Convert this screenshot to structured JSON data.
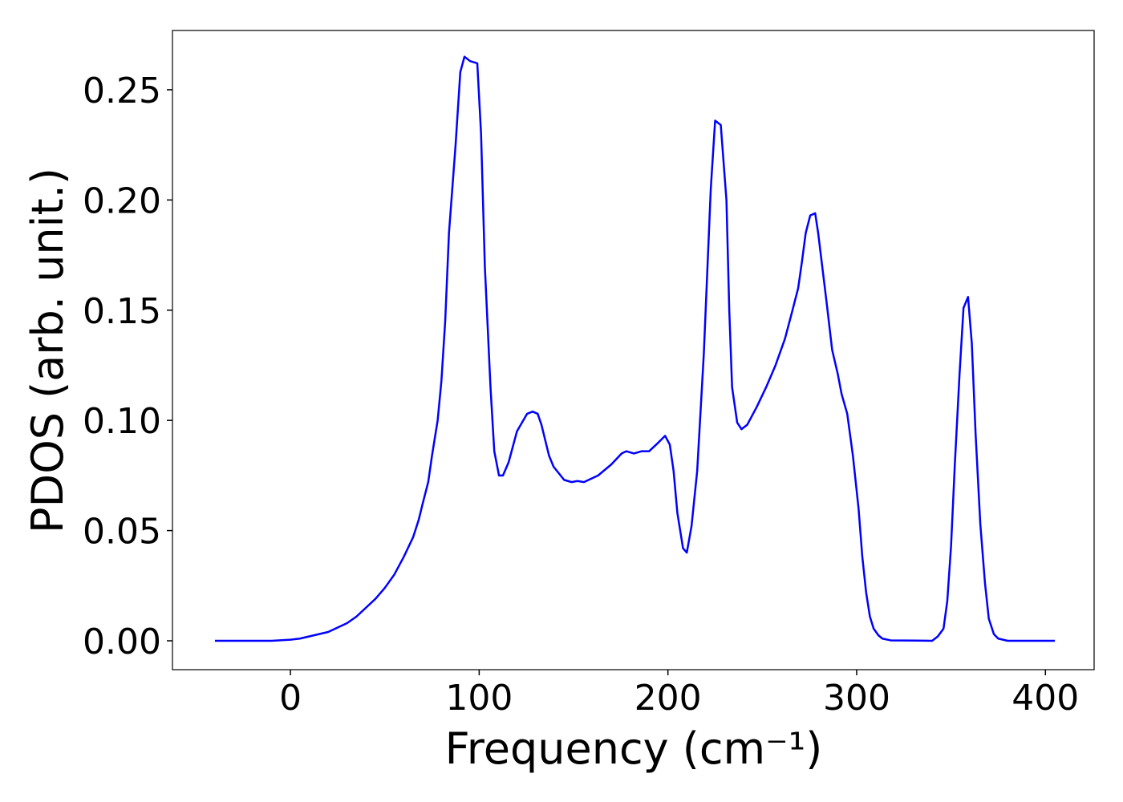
{
  "chart_data": {
    "type": "line",
    "xlabel": "Frequency (cm⁻¹)",
    "ylabel": "PDOS (arb. unit.)",
    "xlim": [
      -62.5,
      425.8
    ],
    "ylim": [
      -0.0131,
      0.2769
    ],
    "xticks": [
      0,
      100,
      200,
      300,
      400
    ],
    "yticks": [
      {
        "value": 0,
        "label": "0.00"
      },
      {
        "value": 0.05,
        "label": "0.05"
      },
      {
        "value": 0.1,
        "label": "0.10"
      },
      {
        "value": 0.15,
        "label": "0.15"
      },
      {
        "value": 0.2,
        "label": "0.20"
      },
      {
        "value": 0.25,
        "label": "0.25"
      }
    ],
    "grid": false,
    "series": [
      {
        "color": "#0000ff",
        "x": [
          -40,
          -10,
          0,
          5,
          10,
          15,
          20,
          25,
          30,
          35,
          40,
          45,
          50,
          55,
          60,
          65,
          68,
          70,
          73,
          75,
          78,
          80,
          82,
          84,
          87.5,
          90,
          92.2,
          95.2,
          99,
          101,
          103,
          106,
          108,
          110.5,
          112.6,
          115.6,
          120,
          125.4,
          128.3,
          131,
          133,
          137,
          139.4,
          145,
          149,
          152,
          155.5,
          163,
          170,
          175.5,
          178,
          182,
          186,
          190,
          195,
          198.5,
          201,
          203,
          205,
          208,
          210,
          212.5,
          215.5,
          219,
          222.7,
          225,
          228,
          231,
          232.5,
          234,
          236.7,
          239,
          242,
          247,
          252,
          257,
          262,
          266,
          269,
          271,
          273,
          275.4,
          278,
          279.6,
          284,
          287,
          290,
          292,
          295,
          298,
          301,
          303,
          305,
          307,
          309,
          311.5,
          313.6,
          318,
          340,
          343,
          346,
          348,
          350,
          352,
          354.5,
          356.6,
          359,
          361,
          363,
          365.5,
          368,
          370,
          372.7,
          375,
          380,
          405
        ],
        "values": [
          0,
          0,
          0.0005,
          0.001,
          0.002,
          0.003,
          0.004,
          0.006,
          0.008,
          0.011,
          0.015,
          0.019,
          0.024,
          0.03,
          0.038,
          0.047,
          0.055,
          0.062,
          0.072,
          0.084,
          0.1,
          0.118,
          0.145,
          0.185,
          0.225,
          0.258,
          0.265,
          0.263,
          0.262,
          0.23,
          0.17,
          0.115,
          0.086,
          0.075,
          0.075,
          0.081,
          0.095,
          0.103,
          0.104,
          0.103,
          0.098,
          0.084,
          0.079,
          0.073,
          0.072,
          0.0725,
          0.072,
          0.075,
          0.08,
          0.085,
          0.086,
          0.085,
          0.086,
          0.086,
          0.09,
          0.093,
          0.089,
          0.077,
          0.058,
          0.042,
          0.04,
          0.052,
          0.077,
          0.13,
          0.205,
          0.236,
          0.234,
          0.2,
          0.15,
          0.115,
          0.099,
          0.096,
          0.098,
          0.106,
          0.115,
          0.125,
          0.137,
          0.15,
          0.16,
          0.172,
          0.185,
          0.193,
          0.194,
          0.185,
          0.154,
          0.132,
          0.121,
          0.112,
          0.103,
          0.084,
          0.06,
          0.038,
          0.022,
          0.011,
          0.0055,
          0.0025,
          0.001,
          0.0002,
          0,
          0.002,
          0.0055,
          0.018,
          0.043,
          0.08,
          0.121,
          0.151,
          0.156,
          0.135,
          0.094,
          0.053,
          0.026,
          0.01,
          0.003,
          0.001,
          0,
          0
        ]
      }
    ]
  }
}
